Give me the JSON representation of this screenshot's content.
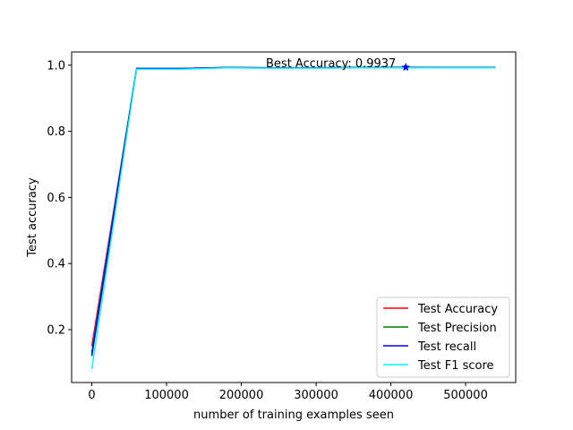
{
  "chart_data": {
    "type": "line",
    "title": "",
    "xlabel": "number of training examples seen",
    "ylabel": "Test accuracy",
    "xlim": [
      -27000,
      567000
    ],
    "ylim": [
      0.04,
      1.04
    ],
    "xticks": [
      0,
      100000,
      200000,
      300000,
      400000,
      500000
    ],
    "xtick_labels": [
      "0",
      "100000",
      "200000",
      "300000",
      "400000",
      "500000"
    ],
    "yticks": [
      0.2,
      0.4,
      0.6,
      0.8,
      1.0
    ],
    "ytick_labels": [
      "0.2",
      "0.4",
      "0.6",
      "0.8",
      "1.0"
    ],
    "grid": false,
    "legend_position": "lower-right",
    "x": [
      0,
      60000,
      120000,
      180000,
      240000,
      300000,
      360000,
      420000,
      480000,
      540000
    ],
    "series": [
      {
        "name": "Test Accuracy",
        "color": "#ff0000",
        "values": [
          0.15,
          0.99,
          0.99,
          0.993,
          0.992,
          0.992,
          0.993,
          0.9937,
          0.993,
          0.993
        ]
      },
      {
        "name": "Test Precision",
        "color": "#008000",
        "values": [
          0.13,
          0.99,
          0.99,
          0.993,
          0.992,
          0.992,
          0.993,
          0.993,
          0.993,
          0.993
        ]
      },
      {
        "name": "Test recall",
        "color": "#0000ff",
        "values": [
          0.12,
          0.99,
          0.99,
          0.993,
          0.992,
          0.992,
          0.993,
          0.993,
          0.993,
          0.993
        ]
      },
      {
        "name": "Test F1 score",
        "color": "#00ffff",
        "values": [
          0.08,
          0.988,
          0.988,
          0.992,
          0.991,
          0.991,
          0.992,
          0.992,
          0.992,
          0.992
        ]
      }
    ],
    "best_point": {
      "x": 420000,
      "y": 0.9937,
      "color": "#0000ff",
      "marker": "star"
    },
    "annotation": "Best Accuracy: 0.9937"
  }
}
